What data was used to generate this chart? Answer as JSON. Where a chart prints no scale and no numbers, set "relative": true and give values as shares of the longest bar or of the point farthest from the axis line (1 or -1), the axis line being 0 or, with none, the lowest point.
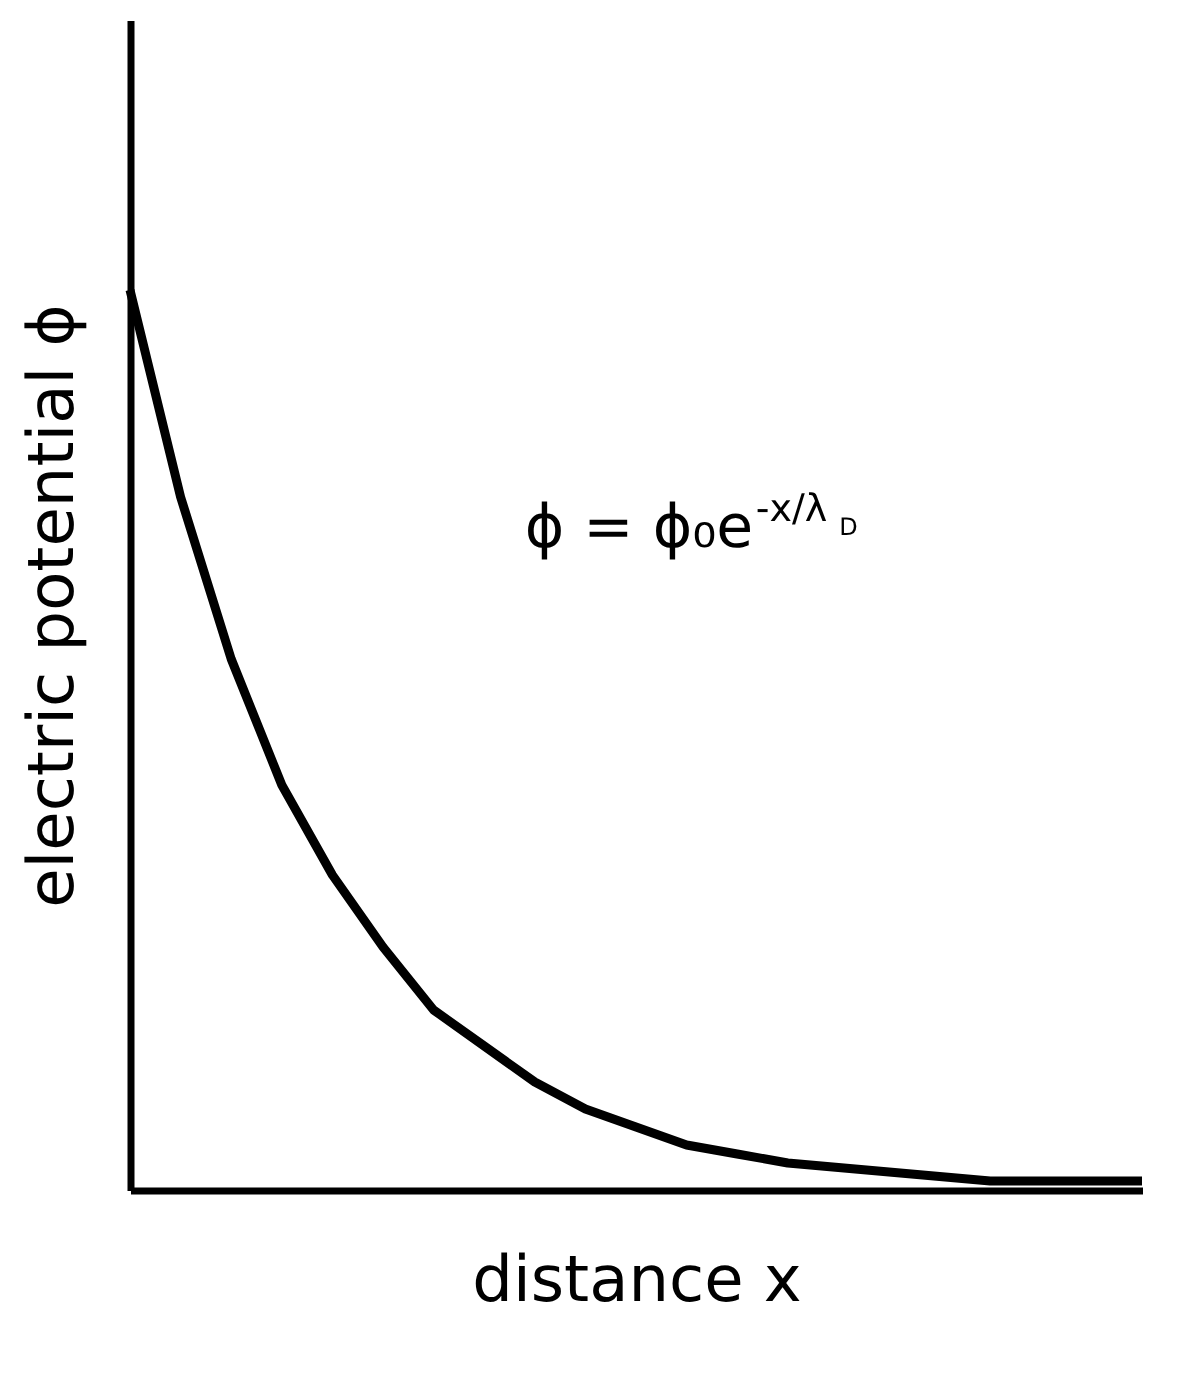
{
  "chart_data": {
    "type": "line",
    "relative": true,
    "xlabel": "distance  x",
    "ylabel": "electric potential  ϕ",
    "categories": [
      null,
      null,
      null,
      null,
      null,
      null,
      null,
      null,
      null,
      null,
      null,
      null,
      null,
      null,
      null,
      null,
      null,
      null,
      null,
      null,
      null
    ],
    "series": [
      {
        "color": "#000000",
        "values": [
          1,
          0.77,
          0.59,
          0.45,
          0.35,
          0.27,
          0.2,
          0.16,
          0.12,
          0.09,
          0.07,
          0.05,
          0.04,
          0.03,
          0.025,
          0.02,
          0.015,
          0.01,
          0.01,
          0.01,
          0.01
        ]
      }
    ],
    "annotations": [
      "ϕ = ϕ₀e$^{-x/λ}$$_{D}$"
    ],
    "grid": false,
    "marker": "none",
    "line_style": "solid"
  }
}
